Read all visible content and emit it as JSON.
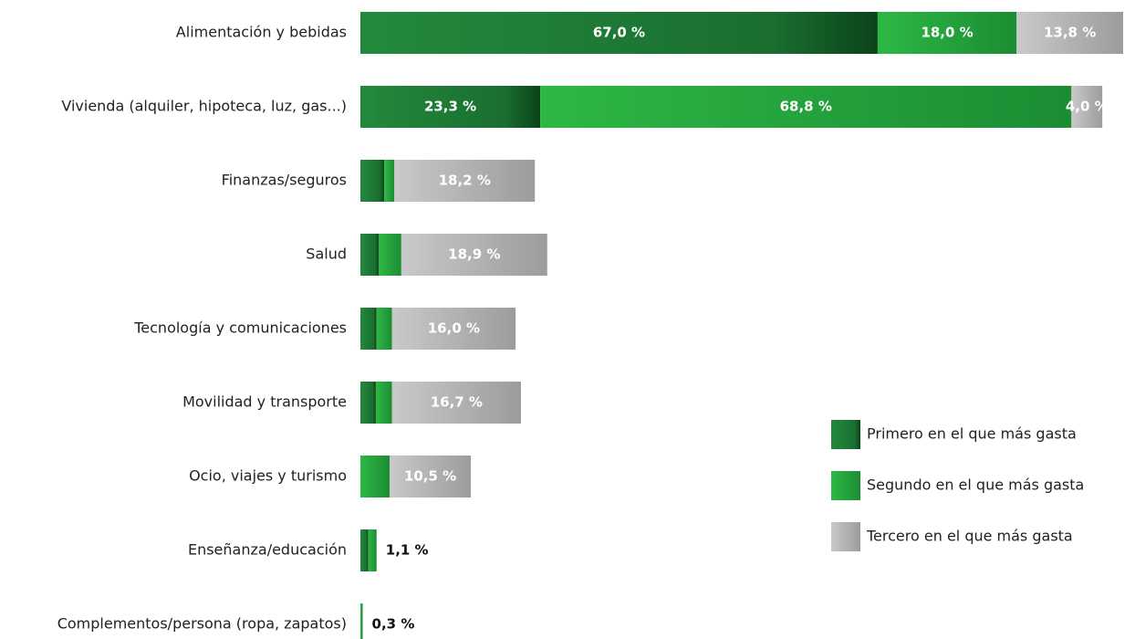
{
  "chart_data": {
    "type": "stacked-bar-horizontal",
    "categories": [
      "Alimentación y bebidas",
      "Vivienda (alquiler, hipoteca, luz, gas...)",
      "Finanzas/seguros",
      "Salud",
      "Tecnología y comunicaciones",
      "Movilidad y transporte",
      "Ocio, viajes y turismo",
      "Enseñanza/educación",
      "Complementos/persona (ropa, zapatos)"
    ],
    "series": [
      {
        "name": "Primero en el que más gasta",
        "color": "#1a6e30",
        "values": [
          67.0,
          23.3,
          3.1,
          2.4,
          2.1,
          2.0,
          0,
          1.0,
          0
        ],
        "value_labels": [
          "67,0 %",
          "23,3 %",
          null,
          null,
          null,
          null,
          null,
          null,
          null
        ]
      },
      {
        "name": "Segundo en el que más gasta",
        "color": "#22a03a",
        "values": [
          18.0,
          68.8,
          1.3,
          2.9,
          2.0,
          2.1,
          3.8,
          1.1,
          0.3
        ],
        "value_labels": [
          "18,0 %",
          "68,8 %",
          null,
          null,
          null,
          null,
          null,
          "1,1 %",
          "0,3 %"
        ]
      },
      {
        "name": "Tercero en el que más gasta",
        "color": "#b3b3b3",
        "values": [
          13.8,
          4.0,
          18.2,
          18.9,
          16.0,
          16.7,
          10.5,
          0,
          0
        ],
        "value_labels": [
          "13,8 %",
          "4,0 %",
          "18,2 %",
          "18,9 %",
          "16,0 %",
          "16,7 %",
          "10,5 %",
          null,
          null
        ]
      }
    ],
    "legend": "right"
  }
}
